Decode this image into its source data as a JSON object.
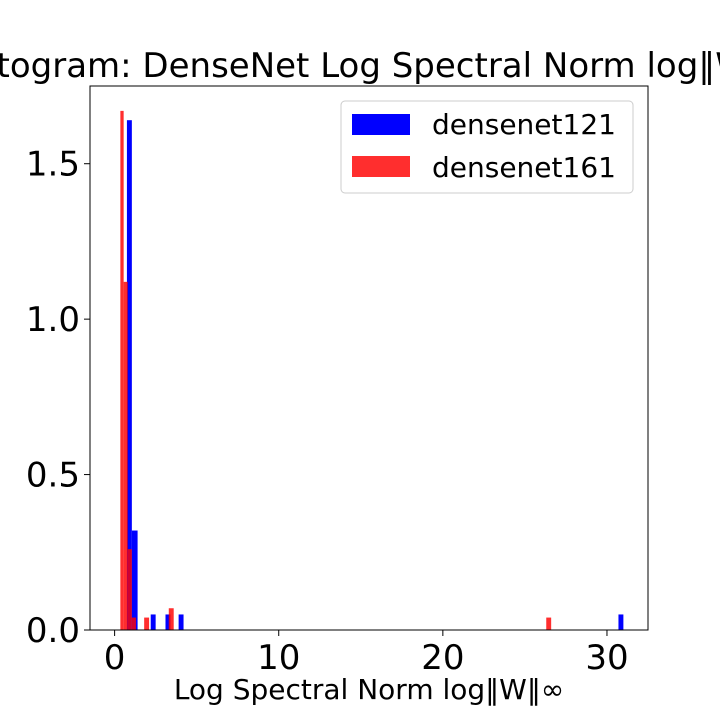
{
  "chart_data": {
    "type": "bar",
    "title": "Histogram: DenseNet Log Spectral Norm log‖W‖∞",
    "xlabel": "Log Spectral Norm log‖W‖∞",
    "ylabel": "",
    "xlim": [
      -1.5,
      32.5
    ],
    "ylim": [
      0,
      1.75
    ],
    "xticks": [
      0,
      10,
      20,
      30
    ],
    "yticks": [
      0.0,
      0.5,
      1.0,
      1.5
    ],
    "xtick_labels": [
      "0",
      "10",
      "20",
      "30"
    ],
    "ytick_labels": [
      "0.0",
      "0.5",
      "1.0",
      "1.5"
    ],
    "legend_position": "top-right",
    "series": [
      {
        "name": "densenet121",
        "color": "#0000ff",
        "opacity": 1.0,
        "bins": [
          {
            "x0": 0.75,
            "x1": 1.05,
            "value": 1.64
          },
          {
            "x0": 1.05,
            "x1": 1.4,
            "value": 0.32
          },
          {
            "x0": 2.2,
            "x1": 2.5,
            "value": 0.05
          },
          {
            "x0": 3.1,
            "x1": 3.4,
            "value": 0.05
          },
          {
            "x0": 3.9,
            "x1": 4.2,
            "value": 0.05
          },
          {
            "x0": 30.7,
            "x1": 31.0,
            "value": 0.05
          }
        ]
      },
      {
        "name": "densenet161",
        "color": "#ff0000",
        "opacity": 0.82,
        "bins": [
          {
            "x0": 0.35,
            "x1": 0.55,
            "value": 1.67
          },
          {
            "x0": 0.55,
            "x1": 0.8,
            "value": 1.12
          },
          {
            "x0": 0.8,
            "x1": 1.05,
            "value": 0.26
          },
          {
            "x0": 1.05,
            "x1": 1.3,
            "value": 0.04
          },
          {
            "x0": 1.8,
            "x1": 2.1,
            "value": 0.04
          },
          {
            "x0": 3.3,
            "x1": 3.6,
            "value": 0.07
          },
          {
            "x0": 26.3,
            "x1": 26.6,
            "value": 0.04
          }
        ]
      }
    ]
  }
}
